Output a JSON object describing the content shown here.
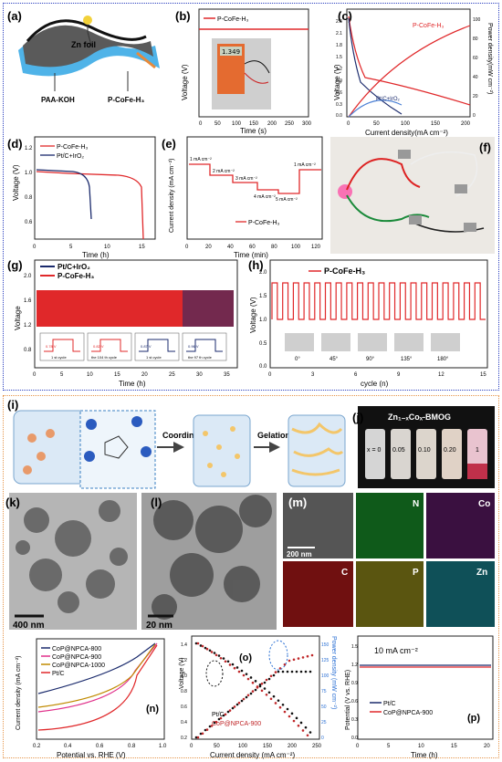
{
  "figure": {
    "colors": {
      "blue_frame": "#2a3fbf",
      "orange_frame": "#e6954a",
      "red": "#e0282a",
      "navy": "#1a2a6c",
      "pink": "#e0308a",
      "olive": "#c08a00"
    },
    "panels": {
      "a": {
        "label": "(a)",
        "zn_label": "Zn foil",
        "left_label": "PAA-KOH",
        "right_label": "P-CoFe-H₃"
      },
      "b": {
        "label": "(b)",
        "legend": "P-CoFe-H₃",
        "xlabel": "Time (s)",
        "ylabel": "Voltage (V)",
        "xticks": [
          "0",
          "50",
          "100",
          "150",
          "200",
          "250",
          "300"
        ],
        "meter_reading": "1.349"
      },
      "c": {
        "label": "(c)",
        "series_a": "P-CoFe-H₃",
        "series_b": "Pt/C+IrO₂",
        "xlabel": "Current density(mA cm⁻²)",
        "ylabel": "Voltage (V)",
        "y2label": "Power density(mW cm⁻²)",
        "xticks": [
          "0",
          "50",
          "100",
          "150",
          "200"
        ],
        "yticks": [
          "0.0",
          "0.3",
          "0.6",
          "0.9",
          "1.2",
          "1.5",
          "1.8",
          "2.1",
          "2.4"
        ],
        "y2ticks": [
          "0",
          "20",
          "40",
          "60",
          "80",
          "100"
        ]
      },
      "d": {
        "label": "(d)",
        "series_a": "P-CoFe-H₃",
        "series_b": "Pt/C+IrO₂",
        "xlabel": "Time (h)",
        "ylabel": "Voltage (V)",
        "xticks": [
          "0",
          "5",
          "10",
          "15"
        ],
        "yticks": [
          "0.6",
          "0.8",
          "1.0",
          "1.2"
        ]
      },
      "e": {
        "label": "(e)",
        "legend": "P-CoFe-H₃",
        "xlabel": "Time (min)",
        "ylabel": "Current density (mA cm⁻²)",
        "xticks": [
          "0",
          "20",
          "40",
          "60",
          "80",
          "100",
          "120"
        ],
        "steps": [
          "1 mA cm⁻²",
          "2 mA cm⁻²",
          "3 mA cm⁻²",
          "4 mA cm⁻²",
          "5 mA cm⁻²",
          "1 mA cm⁻²"
        ]
      },
      "f": {
        "label": "(f)"
      },
      "g": {
        "label": "(g)",
        "series_a": "Pt/C+IrO₂",
        "series_b": "P-CoFe-H₃",
        "xlabel": "Time (h)",
        "ylabel": "Voltage",
        "xticks": [
          "0",
          "5",
          "10",
          "15",
          "20",
          "25",
          "30",
          "35"
        ],
        "yticks": [
          "0.8",
          "1.2",
          "1.6",
          "2.0"
        ],
        "insets": [
          "1 st cycle",
          "the 104 th cycle",
          "1 st cycle",
          "the 97 th cycle"
        ],
        "inset_gaps": [
          "0.78 V",
          "0.82 V",
          "0.87 V",
          "0.96 V"
        ]
      },
      "h": {
        "label": "(h)",
        "legend": "P-CoFe-H₃",
        "xlabel": "cycle (n)",
        "ylabel": "Voltage (V)",
        "xticks": [
          "0",
          "3",
          "6",
          "9",
          "12",
          "15"
        ],
        "yticks": [
          "0.0",
          "0.5",
          "1.0",
          "1.5",
          "2.0"
        ],
        "angles": [
          "0°",
          "45°",
          "90°",
          "135°",
          "180°"
        ]
      },
      "i": {
        "label": "(i)",
        "step1": "Coordination",
        "step2": "Gelation"
      },
      "j": {
        "label": "(j)",
        "title": "Zn₁₋ₓCoₓ-BMOG",
        "vials": [
          "x = 0",
          "0.05",
          "0.10",
          "0.20",
          "1"
        ]
      },
      "k": {
        "label": "(k)",
        "scale": "400 nm"
      },
      "l": {
        "label": "(l)",
        "scale": "20 nm"
      },
      "m": {
        "label": "(m)",
        "scale": "200 nm",
        "elements": [
          "N",
          "Co",
          "C",
          "P",
          "Zn"
        ]
      },
      "n": {
        "label": "(n)",
        "series": [
          "CoP@NPCA-800",
          "CoP@NPCA-900",
          "CoP@NPCA-1000",
          "Pt/C"
        ],
        "xlabel": "Potential vs. RHE (V)",
        "ylabel": "Current density (mA cm⁻²)",
        "xticks": [
          "0.2",
          "0.4",
          "0.6",
          "0.8",
          "1.0"
        ]
      },
      "o": {
        "label": "(o)",
        "series": [
          "Pt/C",
          "CoP@NPCA-900"
        ],
        "xlabel": "Current density (mA cm⁻²)",
        "ylabel": "Voltage (V)",
        "y2label": "Power density (mW cm⁻²)",
        "xticks": [
          "0",
          "50",
          "100",
          "150",
          "200",
          "250"
        ],
        "y2ticks": [
          "0",
          "25",
          "50",
          "75",
          "100",
          "125",
          "150"
        ],
        "yticks": [
          "0.2",
          "0.4",
          "0.6",
          "0.8",
          "1.0",
          "1.2",
          "1.4"
        ]
      },
      "p": {
        "label": "(p)",
        "note": "10 mA cm⁻²",
        "series": [
          "Pt/C",
          "CoP@NPCA-900"
        ],
        "xlabel": "Time (h)",
        "ylabel": "Potential (V vs. RHE)",
        "xticks": [
          "0",
          "5",
          "10",
          "15",
          "20"
        ],
        "yticks": [
          "0.0",
          "0.3",
          "0.6",
          "0.9",
          "1.2",
          "1.5"
        ]
      }
    }
  }
}
